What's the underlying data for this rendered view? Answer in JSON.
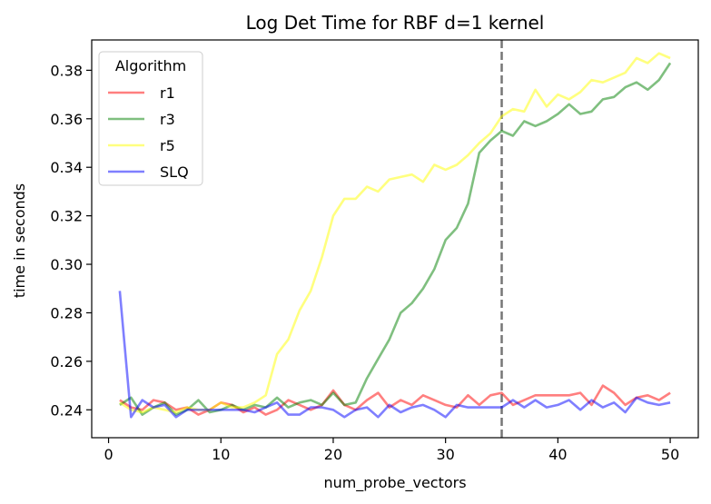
{
  "chart_data": {
    "type": "line",
    "title": "Log Det Time for RBF d=1 kernel",
    "xlabel": "num_probe_vectors",
    "ylabel": "time in seconds",
    "xlim": [
      -1.5,
      52.5
    ],
    "ylim": [
      0.2285,
      0.3925
    ],
    "xticks": [
      0,
      10,
      20,
      30,
      40,
      50
    ],
    "yticks": [
      0.24,
      0.26,
      0.28,
      0.3,
      0.32,
      0.34,
      0.36,
      0.38
    ],
    "ytick_labels": [
      "0.24",
      "0.26",
      "0.28",
      "0.30",
      "0.32",
      "0.34",
      "0.36",
      "0.38"
    ],
    "grid": false,
    "legend": {
      "title": "Algorithm",
      "placement": "upper-left"
    },
    "vline": {
      "x": 35,
      "style": "dashed",
      "color": "#777777"
    },
    "x": [
      1,
      2,
      3,
      4,
      5,
      6,
      7,
      8,
      9,
      10,
      11,
      12,
      13,
      14,
      15,
      16,
      17,
      18,
      19,
      20,
      21,
      22,
      23,
      24,
      25,
      26,
      27,
      28,
      29,
      30,
      31,
      32,
      33,
      34,
      35,
      36,
      37,
      38,
      39,
      40,
      41,
      42,
      43,
      44,
      45,
      46,
      47,
      48,
      49,
      50
    ],
    "series": [
      {
        "name": "r1",
        "color": "#ff0000",
        "values": [
          0.244,
          0.241,
          0.24,
          0.244,
          0.243,
          0.24,
          0.241,
          0.238,
          0.24,
          0.243,
          0.242,
          0.239,
          0.241,
          0.238,
          0.24,
          0.244,
          0.242,
          0.24,
          0.242,
          0.248,
          0.242,
          0.24,
          0.244,
          0.247,
          0.241,
          0.244,
          0.242,
          0.246,
          0.244,
          0.242,
          0.241,
          0.246,
          0.242,
          0.246,
          0.247,
          0.242,
          0.244,
          0.246,
          0.246,
          0.246,
          0.246,
          0.247,
          0.242,
          0.25,
          0.247,
          0.242,
          0.245,
          0.246,
          0.244,
          0.247
        ]
      },
      {
        "name": "r3",
        "color": "#008000",
        "values": [
          0.242,
          0.245,
          0.238,
          0.241,
          0.243,
          0.238,
          0.24,
          0.244,
          0.239,
          0.24,
          0.242,
          0.24,
          0.242,
          0.241,
          0.245,
          0.241,
          0.243,
          0.244,
          0.242,
          0.247,
          0.242,
          0.243,
          0.253,
          0.261,
          0.269,
          0.28,
          0.284,
          0.29,
          0.298,
          0.31,
          0.315,
          0.325,
          0.346,
          0.351,
          0.355,
          0.353,
          0.359,
          0.357,
          0.359,
          0.362,
          0.366,
          0.362,
          0.363,
          0.368,
          0.369,
          0.373,
          0.375,
          0.372,
          0.376,
          0.383
        ]
      },
      {
        "name": "r5",
        "color": "#ffff00",
        "values": [
          0.243,
          0.24,
          0.239,
          0.241,
          0.24,
          0.239,
          0.241,
          0.24,
          0.24,
          0.243,
          0.241,
          0.241,
          0.243,
          0.246,
          0.263,
          0.269,
          0.281,
          0.289,
          0.303,
          0.32,
          0.327,
          0.327,
          0.332,
          0.33,
          0.335,
          0.336,
          0.337,
          0.334,
          0.341,
          0.339,
          0.341,
          0.345,
          0.35,
          0.354,
          0.361,
          0.364,
          0.363,
          0.372,
          0.365,
          0.37,
          0.368,
          0.371,
          0.376,
          0.375,
          0.377,
          0.379,
          0.385,
          0.383,
          0.387,
          0.385
        ]
      },
      {
        "name": "SLQ",
        "color": "#0000ff",
        "values": [
          0.289,
          0.237,
          0.244,
          0.241,
          0.242,
          0.237,
          0.24,
          0.24,
          0.24,
          0.24,
          0.24,
          0.24,
          0.239,
          0.241,
          0.243,
          0.238,
          0.238,
          0.241,
          0.241,
          0.24,
          0.237,
          0.24,
          0.241,
          0.237,
          0.242,
          0.239,
          0.241,
          0.242,
          0.24,
          0.237,
          0.242,
          0.241,
          0.241,
          0.241,
          0.241,
          0.244,
          0.241,
          0.244,
          0.241,
          0.242,
          0.244,
          0.24,
          0.244,
          0.241,
          0.243,
          0.239,
          0.245,
          0.243,
          0.242,
          0.243
        ]
      }
    ]
  }
}
